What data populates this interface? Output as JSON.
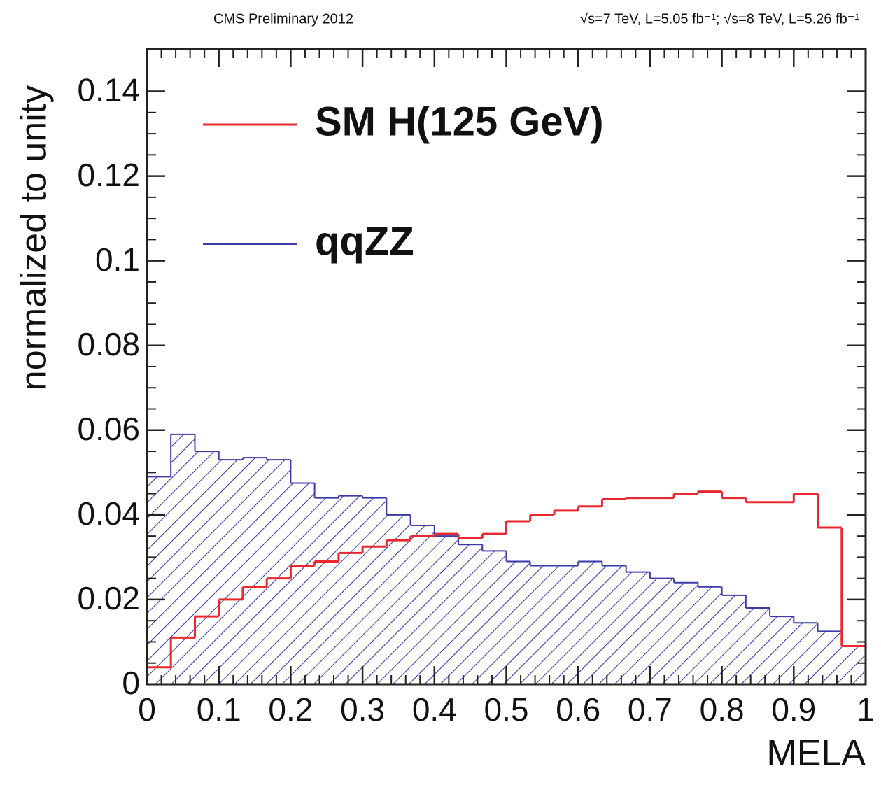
{
  "chart_data": {
    "type": "histogram",
    "header_left": "CMS Preliminary 2012",
    "header_right": "√s=7 TeV, L=5.05 fb⁻¹;  √s=8 TeV, L=5.26 fb⁻¹",
    "x_label": "MELA",
    "y_label": "normalized to unity",
    "bins": [
      0,
      0.0333,
      0.0667,
      0.1,
      0.1333,
      0.1667,
      0.2,
      0.2333,
      0.2667,
      0.3,
      0.3333,
      0.3667,
      0.4,
      0.4333,
      0.4667,
      0.5,
      0.5333,
      0.5667,
      0.6,
      0.6333,
      0.6667,
      0.7,
      0.7333,
      0.7667,
      0.8,
      0.8333,
      0.8667,
      0.9,
      0.9333,
      0.9667,
      1
    ],
    "series": [
      {
        "name": "SM H(125 GeV)",
        "color": "#e8282e",
        "style": "line",
        "values": [
          0.004,
          0.011,
          0.016,
          0.02,
          0.023,
          0.025,
          0.028,
          0.029,
          0.031,
          0.0325,
          0.034,
          0.035,
          0.0355,
          0.0345,
          0.0355,
          0.0385,
          0.04,
          0.041,
          0.042,
          0.0437,
          0.044,
          0.044,
          0.045,
          0.0455,
          0.044,
          0.043,
          0.043,
          0.045,
          0.037,
          0.009
        ]
      },
      {
        "name": "qqZZ",
        "color": "#3a3aa8",
        "style": "hatched",
        "values": [
          0.049,
          0.059,
          0.055,
          0.053,
          0.0535,
          0.053,
          0.0475,
          0.044,
          0.0445,
          0.044,
          0.04,
          0.0375,
          0.035,
          0.033,
          0.0315,
          0.029,
          0.028,
          0.028,
          0.029,
          0.028,
          0.0265,
          0.025,
          0.024,
          0.023,
          0.021,
          0.018,
          0.016,
          0.0145,
          0.0125,
          0.009
        ]
      }
    ],
    "xlim": [
      0,
      1
    ],
    "ylim": [
      0,
      0.15
    ],
    "xticks": [
      0,
      0.1,
      0.2,
      0.3,
      0.4,
      0.5,
      0.6,
      0.7,
      0.8,
      0.9,
      1
    ],
    "yticks": [
      0,
      0.02,
      0.04,
      0.06,
      0.08,
      0.1,
      0.12,
      0.14
    ],
    "legend": "upper left",
    "grid": false
  }
}
